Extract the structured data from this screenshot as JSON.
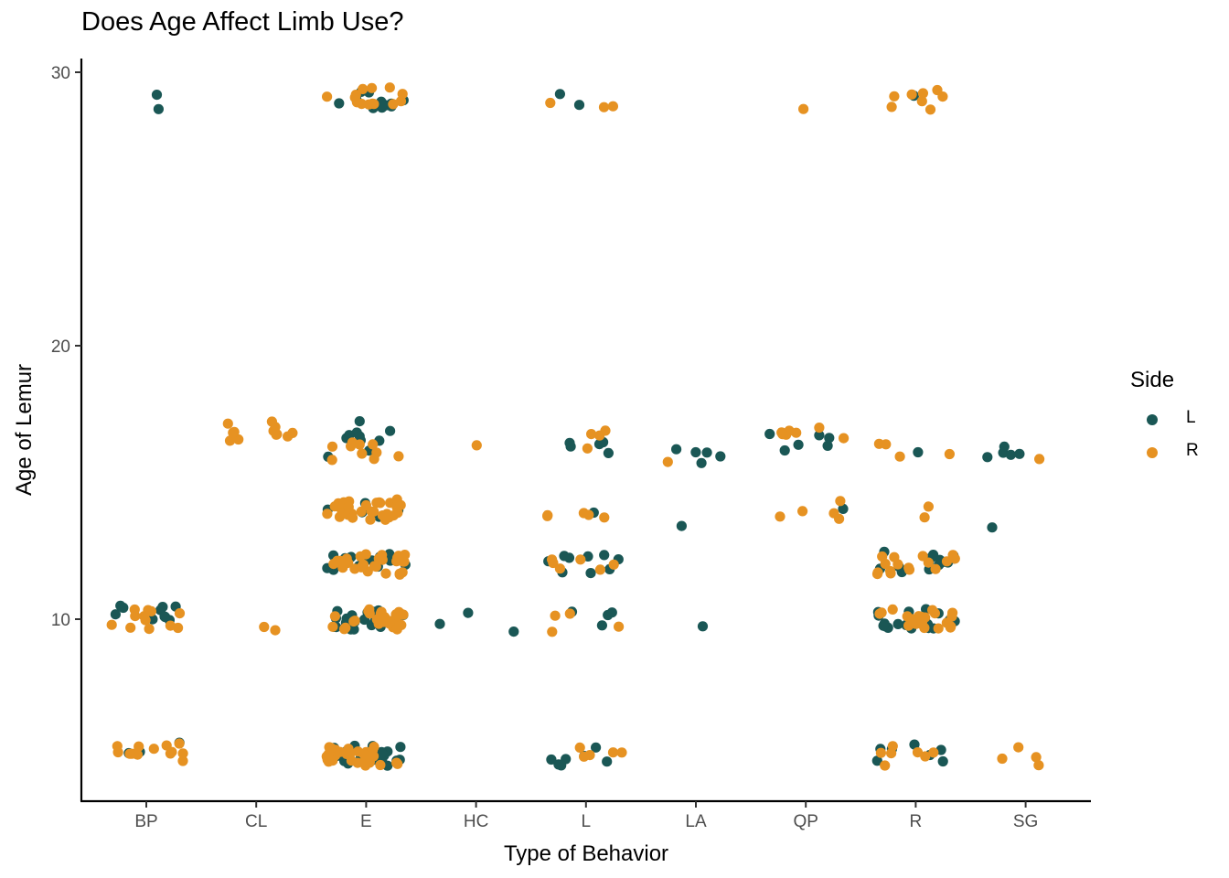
{
  "chart_data": {
    "type": "scatter",
    "title": "Does Age Affect Limb Use?",
    "xlabel": "Type of Behavior",
    "ylabel": "Age of Lemur",
    "categories": [
      "BP",
      "CL",
      "E",
      "HC",
      "L",
      "LA",
      "QP",
      "R",
      "SG"
    ],
    "yticks": [
      10,
      20,
      30
    ],
    "ylim": [
      4.0,
      31.4
    ],
    "grid": false,
    "legend": {
      "title": "Side",
      "position": "right"
    },
    "jitter_width": 0.45,
    "series": [
      {
        "name": "L",
        "color": "#1a5755",
        "points": [
          {
            "x": "BP",
            "y": 28.8,
            "n": 2
          },
          {
            "x": "BP",
            "y": 10.2,
            "n": 10
          },
          {
            "x": "BP",
            "y": 5.2,
            "n": 3
          },
          {
            "x": "E",
            "y": 29.0,
            "n": 12
          },
          {
            "x": "E",
            "y": 16.9,
            "n": 8
          },
          {
            "x": "E",
            "y": 15.9,
            "n": 3
          },
          {
            "x": "E",
            "y": 13.9,
            "n": 6
          },
          {
            "x": "E",
            "y": 12.0,
            "n": 16
          },
          {
            "x": "E",
            "y": 10.0,
            "n": 22
          },
          {
            "x": "E",
            "y": 5.0,
            "n": 24
          },
          {
            "x": "HC",
            "y": 9.9,
            "n": 3
          },
          {
            "x": "L",
            "y": 28.9,
            "n": 2
          },
          {
            "x": "L",
            "y": 16.1,
            "n": 5
          },
          {
            "x": "L",
            "y": 13.8,
            "n": 1
          },
          {
            "x": "L",
            "y": 12.0,
            "n": 9
          },
          {
            "x": "L",
            "y": 10.0,
            "n": 4
          },
          {
            "x": "L",
            "y": 5.0,
            "n": 7
          },
          {
            "x": "LA",
            "y": 16.0,
            "n": 5
          },
          {
            "x": "LA",
            "y": 13.7,
            "n": 1
          },
          {
            "x": "LA",
            "y": 9.7,
            "n": 1
          },
          {
            "x": "QP",
            "y": 16.4,
            "n": 6
          },
          {
            "x": "QP",
            "y": 13.9,
            "n": 1
          },
          {
            "x": "R",
            "y": 29.0,
            "n": 1
          },
          {
            "x": "R",
            "y": 16.1,
            "n": 1
          },
          {
            "x": "R",
            "y": 12.1,
            "n": 14
          },
          {
            "x": "R",
            "y": 10.0,
            "n": 18
          },
          {
            "x": "R",
            "y": 5.1,
            "n": 7
          },
          {
            "x": "SG",
            "y": 16.1,
            "n": 5
          },
          {
            "x": "SG",
            "y": 13.7,
            "n": 1
          }
        ]
      },
      {
        "name": "R",
        "color": "#e69222",
        "points": [
          {
            "x": "BP",
            "y": 10.0,
            "n": 12
          },
          {
            "x": "BP",
            "y": 5.1,
            "n": 14
          },
          {
            "x": "CL",
            "y": 16.9,
            "n": 12
          },
          {
            "x": "CL",
            "y": 9.9,
            "n": 2
          },
          {
            "x": "E",
            "y": 29.2,
            "n": 14
          },
          {
            "x": "E",
            "y": 16.1,
            "n": 10
          },
          {
            "x": "E",
            "y": 14.0,
            "n": 30
          },
          {
            "x": "E",
            "y": 12.0,
            "n": 30
          },
          {
            "x": "E",
            "y": 10.0,
            "n": 28
          },
          {
            "x": "E",
            "y": 5.0,
            "n": 30
          },
          {
            "x": "HC",
            "y": 16.1,
            "n": 1
          },
          {
            "x": "L",
            "y": 29.0,
            "n": 3
          },
          {
            "x": "L",
            "y": 16.6,
            "n": 4
          },
          {
            "x": "L",
            "y": 14.1,
            "n": 5
          },
          {
            "x": "L",
            "y": 12.0,
            "n": 6
          },
          {
            "x": "L",
            "y": 9.9,
            "n": 4
          },
          {
            "x": "L",
            "y": 5.2,
            "n": 5
          },
          {
            "x": "LA",
            "y": 15.8,
            "n": 1
          },
          {
            "x": "QP",
            "y": 29.0,
            "n": 1
          },
          {
            "x": "QP",
            "y": 16.7,
            "n": 7
          },
          {
            "x": "QP",
            "y": 14.1,
            "n": 4
          },
          {
            "x": "QP",
            "y": 13.8,
            "n": 1
          },
          {
            "x": "R",
            "y": 29.0,
            "n": 8
          },
          {
            "x": "R",
            "y": 16.2,
            "n": 4
          },
          {
            "x": "R",
            "y": 13.8,
            "n": 2
          },
          {
            "x": "R",
            "y": 12.0,
            "n": 16
          },
          {
            "x": "R",
            "y": 10.0,
            "n": 22
          },
          {
            "x": "R",
            "y": 5.0,
            "n": 7
          },
          {
            "x": "SG",
            "y": 15.9,
            "n": 1
          },
          {
            "x": "SG",
            "y": 5.0,
            "n": 4
          }
        ]
      }
    ]
  }
}
